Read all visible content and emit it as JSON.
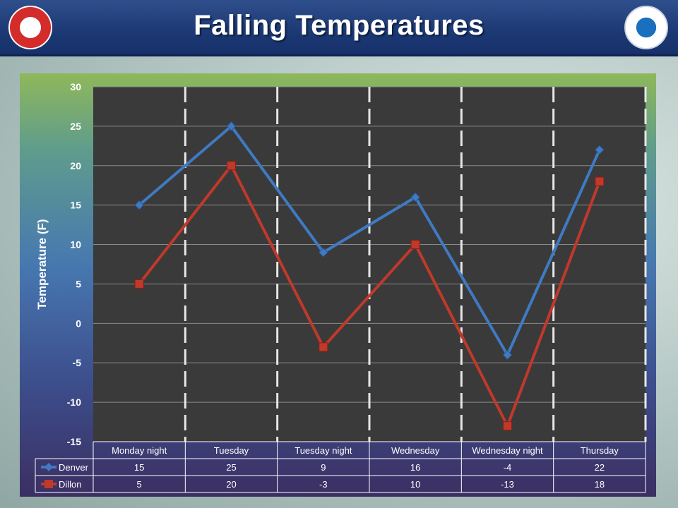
{
  "title": "Falling Temperatures",
  "logos": {
    "left": "national-weather-service-seal",
    "right": "noaa-seal"
  },
  "chart_data": {
    "type": "line",
    "title": "",
    "xlabel": "",
    "ylabel": "Temperature (F)",
    "ylim": [
      -15,
      30
    ],
    "yticks": [
      30,
      25,
      20,
      15,
      10,
      5,
      0,
      -5,
      -10,
      -15
    ],
    "categories": [
      "Monday night",
      "Tuesday",
      "Tuesday night",
      "Wednesday",
      "Wednesday night",
      "Thursday"
    ],
    "series": [
      {
        "name": "Denver",
        "values": [
          15,
          25,
          9,
          16,
          -4,
          22
        ],
        "color": "#3f7ac3",
        "marker": "diamond"
      },
      {
        "name": "Dillon",
        "values": [
          5,
          20,
          -3,
          10,
          -13,
          18
        ],
        "color": "#c0392b",
        "marker": "square"
      }
    ],
    "data_table": true,
    "grid": true,
    "plot_background": "#3a3a3a"
  }
}
